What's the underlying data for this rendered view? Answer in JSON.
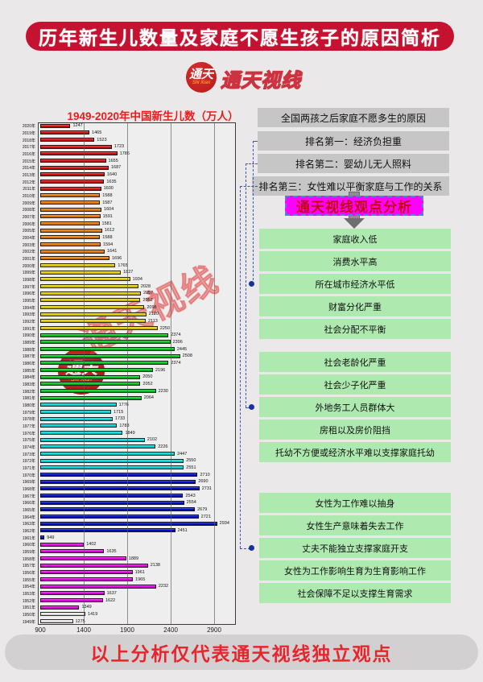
{
  "header": {
    "title": "历年新生儿数量及家庭不愿生孩子的原因简析",
    "banner_color": "#c51230"
  },
  "logo": {
    "circle_label": "通天",
    "script_label": "Shi Xian",
    "brand": "通天视线"
  },
  "chart_data": {
    "type": "bar",
    "orientation": "horizontal",
    "title": "1949-2020年中国新生儿数（万人）",
    "xlabel": "",
    "ylabel": "",
    "x_ticks": [
      900,
      1400,
      1900,
      2400,
      2900
    ],
    "xlim": [
      900,
      3150
    ],
    "year_suffix": "年",
    "years": [
      2020,
      2019,
      2018,
      2017,
      2016,
      2015,
      2014,
      2013,
      2012,
      2011,
      2010,
      2009,
      2008,
      2007,
      2006,
      2005,
      2004,
      2003,
      2002,
      2001,
      2000,
      1999,
      1998,
      1997,
      1996,
      1995,
      1994,
      1993,
      1992,
      1991,
      1990,
      1989,
      1988,
      1987,
      1986,
      1985,
      1984,
      1983,
      1982,
      1981,
      1980,
      1979,
      1978,
      1977,
      1976,
      1975,
      1974,
      1973,
      1972,
      1971,
      1970,
      1969,
      1968,
      1967,
      1966,
      1965,
      1964,
      1963,
      1962,
      1961,
      1960,
      1959,
      1958,
      1957,
      1956,
      1955,
      1954,
      1953,
      1952,
      1951,
      1950,
      1949
    ],
    "values": [
      1247,
      1465,
      1523,
      1723,
      1786,
      1655,
      1687,
      1640,
      1635,
      1600,
      1588,
      1587,
      1604,
      1591,
      1581,
      1612,
      1588,
      1594,
      1641,
      1696,
      1765,
      1827,
      1934,
      2028,
      2057,
      2052,
      2098,
      2120,
      2113,
      2250,
      2374,
      2396,
      2445,
      2508,
      2374,
      2196,
      2050,
      2052,
      2230,
      2064,
      1776,
      1715,
      1733,
      1783,
      1849,
      2102,
      2226,
      2447,
      2550,
      2551,
      2710,
      2690,
      2731,
      2543,
      2554,
      2679,
      2721,
      2934,
      2451,
      949,
      1402,
      1635,
      1889,
      2138,
      1961,
      1965,
      2232,
      1637,
      1622,
      1349,
      1419,
      1275
    ],
    "period_colors": [
      {
        "years": "2020-2011",
        "color": "#e01010"
      },
      {
        "years": "2010-2001",
        "color": "#f07c00"
      },
      {
        "years": "2000-1991",
        "color": "#e8cf00"
      },
      {
        "years": "1990-1981",
        "color": "#00cd1f"
      },
      {
        "years": "1980-1971",
        "color": "#00dcdc"
      },
      {
        "years": "1970-1961",
        "color": "#0010d0"
      },
      {
        "years": "1960-1951",
        "color": "#f000f0"
      },
      {
        "years": "1950-1949",
        "color": "#ededed"
      }
    ],
    "watermark_text": "通天视线",
    "watermark_logo_circle": "通天",
    "watermark_logo_script": "Shi Xian"
  },
  "right_panel": {
    "header": "全国两孩之后家庭不愿多生的原因",
    "rankings": [
      "排名第一：经济负担重",
      "排名第二：婴幼儿无人照料",
      "排名第三：女性难以平衡家庭与工作的关系"
    ],
    "analysis_badge": {
      "label": "通天视线观点分析",
      "bg": "#ff00ff",
      "text_color": "#c00a0a"
    },
    "groups": [
      {
        "items": [
          "家庭收入低",
          "消费水平高",
          "所在城市经济水平低",
          "财富分化严重",
          "社会分配不平衡"
        ],
        "linked_item_index": 2
      },
      {
        "items": [
          "社会老龄化严重",
          "社会少子化严重",
          "外地务工人员群体大",
          "房租以及房价阻挡",
          "托幼不方便或经济水平难以支撑家庭托幼"
        ],
        "linked_item_index": 2
      },
      {
        "items": [
          "女性为工作难以抽身",
          "女性生产意味着失去工作",
          "丈夫不能独立支撑家庭开支",
          "女性为工作影响生育为生育影响工作",
          "社会保障不足以支撑生育需求"
        ],
        "linked_item_index": 2
      }
    ],
    "colors": {
      "box_green": "#aeeab0",
      "box_gray": "#c6c6c6",
      "connector_blue": "#3a56cc"
    }
  },
  "footer": {
    "text": "以上分析仅代表通天视线独立观点"
  }
}
